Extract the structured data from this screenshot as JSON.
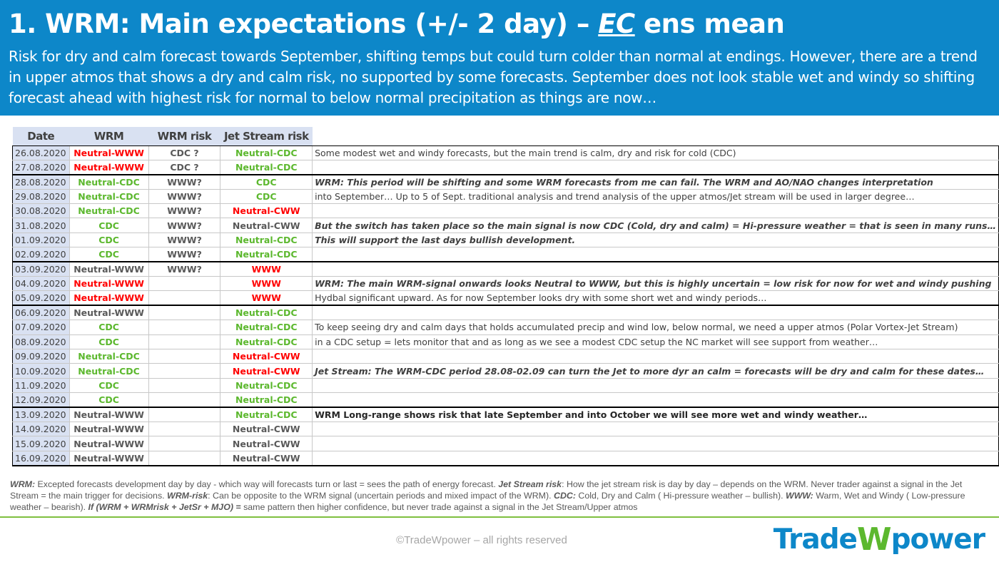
{
  "header": {
    "title_prefix": "1. WRM: Main expectations (+/- 2 day) – ",
    "title_ec": "EC",
    "title_suffix": " ens mean",
    "subtitle": "Risk for dry and calm forecast towards September, shifting temps but could turn colder than normal at endings. However, there are a trend in upper atmos that shows a dry and calm risk, no supported by some forecasts. September does not look stable wet and windy so shifting forecast ahead with highest risk for normal to below normal precipitation as things are now…"
  },
  "table": {
    "headers": [
      "Date",
      "WRM",
      "WRM risk",
      "Jet Stream risk"
    ],
    "rows": [
      {
        "date": "26.08.2020",
        "wrm": "Neutral-WWW",
        "wrm_c": "red",
        "risk": "CDC ?",
        "risk_c": "gray",
        "jet": "Neutral-CDC",
        "jet_c": "green",
        "comment": "Some modest wet and windy forecasts, but the main trend is calm, dry and risk for cold (CDC)",
        "style": "",
        "sep": false
      },
      {
        "date": "27.08.2020",
        "wrm": "Neutral-WWW",
        "wrm_c": "red",
        "risk": "CDC ?",
        "risk_c": "gray",
        "jet": "Neutral-CDC",
        "jet_c": "green",
        "comment": "",
        "style": "",
        "sep": true
      },
      {
        "date": "28.08.2020",
        "wrm": "Neutral-CDC",
        "wrm_c": "green",
        "risk": "WWW?",
        "risk_c": "gray",
        "jet": "CDC",
        "jet_c": "green",
        "comment": "WRM: This period will be shifting and some WRM forecasts from me can fail. The WRM and AO/NAO changes interpretation",
        "style": "bi",
        "sep": false
      },
      {
        "date": "29.08.2020",
        "wrm": "Neutral-CDC",
        "wrm_c": "green",
        "risk": "WWW?",
        "risk_c": "gray",
        "jet": "CDC",
        "jet_c": "green",
        "comment": "into September… Up to 5 of Sept.  traditional analysis and trend analysis of the upper atmos/Jet stream will be used in larger degree…",
        "style": "",
        "sep": false
      },
      {
        "date": "30.08.2020",
        "wrm": "Neutral-CDC",
        "wrm_c": "green",
        "risk": "WWW?",
        "risk_c": "gray",
        "jet": "Neutral-CWW",
        "jet_c": "red",
        "comment": "",
        "style": "",
        "sep": false
      },
      {
        "date": "31.08.2020",
        "wrm": "CDC",
        "wrm_c": "green",
        "risk": "WWW?",
        "risk_c": "gray",
        "jet": "Neutral-CWW",
        "jet_c": "gray",
        "comment": "But the switch has taken place so the main signal is now CDC (Cold, dry and calm) = Hi-pressure weather = that is seen in many runs…",
        "style": "bi",
        "sep": false
      },
      {
        "date": "01.09.2020",
        "wrm": "CDC",
        "wrm_c": "green",
        "risk": "WWW?",
        "risk_c": "gray",
        "jet": "Neutral-CDC",
        "jet_c": "green",
        "comment": "This will support the last days bullish development.",
        "style": "bi",
        "sep": false
      },
      {
        "date": "02.09.2020",
        "wrm": "CDC",
        "wrm_c": "green",
        "risk": "WWW?",
        "risk_c": "gray",
        "jet": "Neutral-CDC",
        "jet_c": "green",
        "comment": "",
        "style": "",
        "sep": true
      },
      {
        "date": "03.09.2020",
        "wrm": "Neutral-WWW",
        "wrm_c": "gray",
        "risk": "WWW?",
        "risk_c": "gray",
        "jet": "WWW",
        "jet_c": "red",
        "comment": "",
        "style": "",
        "sep": false
      },
      {
        "date": "04.09.2020",
        "wrm": "Neutral-WWW",
        "wrm_c": "red",
        "risk": "",
        "risk_c": "gray",
        "jet": "WWW",
        "jet_c": "red",
        "comment": "WRM: The main WRM-signal onwards looks Neutral to WWW, but this is highly uncertain = low risk for now for wet and windy pushing",
        "style": "bi",
        "sep": false
      },
      {
        "date": "05.09.2020",
        "wrm": "Neutral-WWW",
        "wrm_c": "red",
        "risk": "",
        "risk_c": "gray",
        "jet": "WWW",
        "jet_c": "red",
        "comment": "Hydbal significant upward. As for now September looks dry with some short wet and windy periods…",
        "style": "",
        "sep": true
      },
      {
        "date": "06.09.2020",
        "wrm": "Neutral-WWW",
        "wrm_c": "gray",
        "risk": "",
        "risk_c": "gray",
        "jet": "Neutral-CDC",
        "jet_c": "green",
        "comment": "",
        "style": "",
        "sep": false
      },
      {
        "date": "07.09.2020",
        "wrm": "CDC",
        "wrm_c": "green",
        "risk": "",
        "risk_c": "gray",
        "jet": "Neutral-CDC",
        "jet_c": "green",
        "comment": "To keep seeing dry and calm days that holds accumulated precip and wind low, below normal, we need a upper atmos (Polar Vortex-Jet Stream)",
        "style": "",
        "sep": false
      },
      {
        "date": "08.09.2020",
        "wrm": "CDC",
        "wrm_c": "green",
        "risk": "",
        "risk_c": "gray",
        "jet": "Neutral-CDC",
        "jet_c": "green",
        "comment": "in a CDC setup = lets monitor that and as long as we see a modest CDC setup the NC market will see support from weather…",
        "style": "",
        "sep": false
      },
      {
        "date": "09.09.2020",
        "wrm": "Neutral-CDC",
        "wrm_c": "green",
        "risk": "",
        "risk_c": "gray",
        "jet": "Neutral-CWW",
        "jet_c": "red",
        "comment": "",
        "style": "",
        "sep": false
      },
      {
        "date": "10.09.2020",
        "wrm": "Neutral-CDC",
        "wrm_c": "green",
        "risk": "",
        "risk_c": "gray",
        "jet": "Neutral-CWW",
        "jet_c": "red",
        "comment": "Jet Stream: The WRM-CDC period 28.08-02.09 can turn the Jet to more dyr an calm = forecasts will be dry and calm for these dates…",
        "style": "bi",
        "sep": false
      },
      {
        "date": "11.09.2020",
        "wrm": "CDC",
        "wrm_c": "green",
        "risk": "",
        "risk_c": "gray",
        "jet": "Neutral-CDC",
        "jet_c": "green",
        "comment": "",
        "style": "",
        "sep": false
      },
      {
        "date": "12.09.2020",
        "wrm": "CDC",
        "wrm_c": "green",
        "risk": "",
        "risk_c": "gray",
        "jet": "Neutral-CDC",
        "jet_c": "green",
        "comment": "",
        "style": "",
        "sep": true
      },
      {
        "date": "13.09.2020",
        "wrm": "Neutral-WWW",
        "wrm_c": "gray",
        "risk": "",
        "risk_c": "gray",
        "jet": "Neutral-CDC",
        "jet_c": "green",
        "comment": "WRM Long-range shows risk that late September and into October we will see more wet and windy weather…",
        "style": "b",
        "sep": false
      },
      {
        "date": "14.09.2020",
        "wrm": "Neutral-WWW",
        "wrm_c": "gray",
        "risk": "",
        "risk_c": "gray",
        "jet": "Neutral-CWW",
        "jet_c": "gray",
        "comment": "",
        "style": "",
        "sep": false
      },
      {
        "date": "15.09.2020",
        "wrm": "Neutral-WWW",
        "wrm_c": "gray",
        "risk": "",
        "risk_c": "gray",
        "jet": "Neutral-CWW",
        "jet_c": "gray",
        "comment": "",
        "style": "",
        "sep": false
      },
      {
        "date": "16.09.2020",
        "wrm": "Neutral-WWW",
        "wrm_c": "gray",
        "risk": "",
        "risk_c": "gray",
        "jet": "Neutral-CWW",
        "jet_c": "gray",
        "comment": "",
        "style": "",
        "sep": true
      }
    ]
  },
  "legend": [
    {
      "b": "WRM:",
      "t": " Excepted forecasts development day by day - which way will forecasts turn or last = sees the path of energy forecast.  "
    },
    {
      "b": "Jet Stream risk",
      "t": ": How the jet stream risk is day by day – depends on the WRM. Never trader against a signal in the Jet Stream = the main trigger for decisions. "
    },
    {
      "b": "WRM-risk",
      "t": ": Can be opposite to the WRM signal (uncertain periods and mixed impact of the WRM). "
    },
    {
      "b": "CDC:",
      "t": " Cold, Dry and Calm ( Hi-pressure weather – bullish). "
    },
    {
      "b": "WWW:",
      "t": " Warm, Wet and Windy ( Low-pressure weather – bearish). "
    },
    {
      "b": "If (WRM + WRMrisk + JetSr + MJO) =",
      "t": " same pattern then higher confidence, but never trade against a signal in the Jet Stream/Upper atmos"
    }
  ],
  "footer": {
    "copyright": "©TradeWpower – all rights reserved",
    "logo_left": "Trade",
    "logo_w": "W",
    "logo_right": "power"
  },
  "colors": {
    "banner": "#0d87c9",
    "red": "#ff0000",
    "green": "#5cb82e",
    "date_bg": "#d9e1f2"
  }
}
